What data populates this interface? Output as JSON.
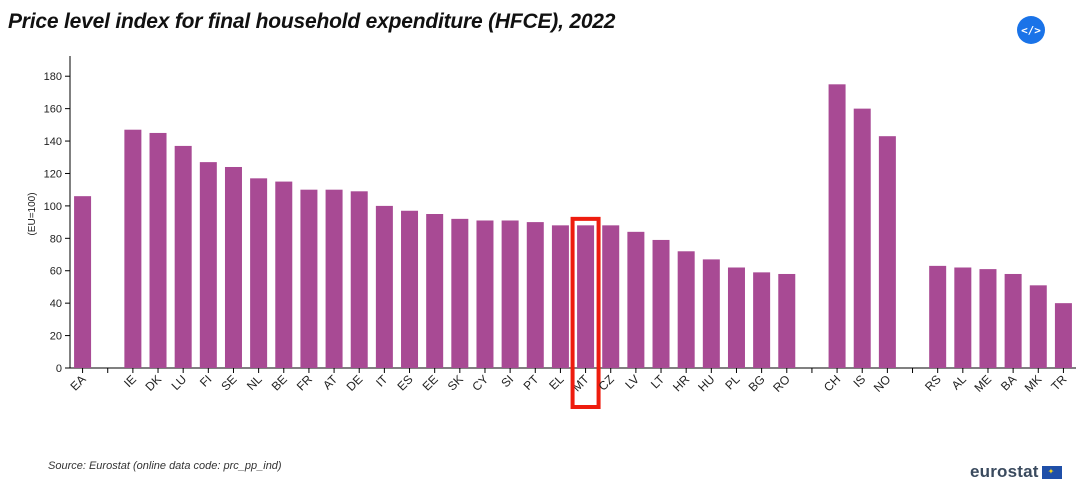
{
  "header": {
    "title": "Price level index for final household expenditure (HFCE), 2022",
    "embed_label": "</>"
  },
  "footer": {
    "source": "Source: Eurostat (online data code: prc_pp_ind)",
    "logo_text": "eurostat"
  },
  "colors": {
    "bar": "#a84a94",
    "highlight": "#ee1c0e",
    "axis": "#000000",
    "button": "#1a73e8"
  },
  "chart_data": {
    "type": "bar",
    "title": "Price level index for final household expenditure (HFCE), 2022",
    "ylabel": "(EU=100)",
    "xlabel": "",
    "ylim": [
      0,
      190
    ],
    "yticks": [
      0,
      20,
      40,
      60,
      80,
      100,
      120,
      140,
      160,
      180
    ],
    "grid": false,
    "highlight_category": "MT",
    "categories": [
      "EA",
      "",
      "IE",
      "DK",
      "LU",
      "FI",
      "SE",
      "NL",
      "BE",
      "FR",
      "AT",
      "DE",
      "IT",
      "ES",
      "EE",
      "SK",
      "CY",
      "SI",
      "PT",
      "EL",
      "MT",
      "CZ",
      "LV",
      "LT",
      "HR",
      "HU",
      "PL",
      "BG",
      "RO",
      "",
      "CH",
      "IS",
      "NO",
      "",
      "RS",
      "AL",
      "ME",
      "BA",
      "MK",
      "TR"
    ],
    "values": [
      106,
      null,
      147,
      145,
      137,
      127,
      124,
      117,
      115,
      110,
      110,
      109,
      100,
      97,
      95,
      92,
      91,
      91,
      90,
      88,
      88,
      88,
      84,
      79,
      72,
      67,
      62,
      59,
      58,
      null,
      175,
      160,
      143,
      null,
      63,
      62,
      61,
      58,
      51,
      40
    ]
  }
}
